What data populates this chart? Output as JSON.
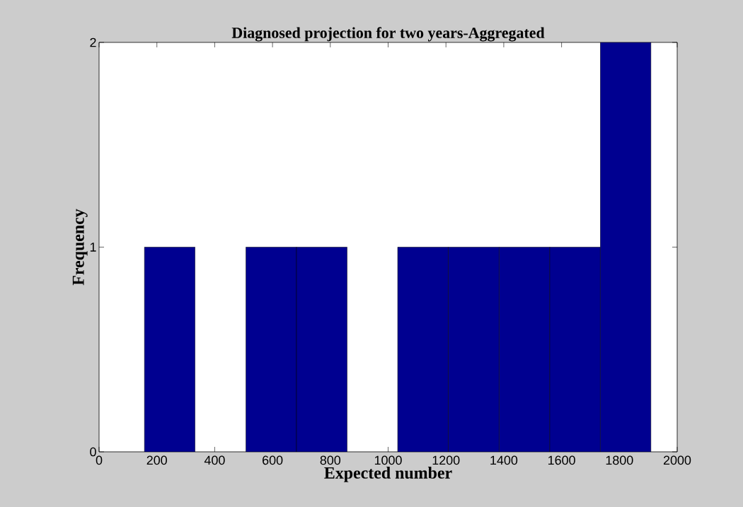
{
  "chart_data": {
    "type": "histogram",
    "title": "Diagnosed projection for two years-Aggregated",
    "xlabel": "Expected number",
    "ylabel": "Frequency",
    "bins": [
      157,
      332,
      508,
      683,
      858,
      1033,
      1208,
      1384,
      1559,
      1734,
      1909
    ],
    "values": [
      1,
      0,
      1,
      1,
      0,
      1,
      1,
      1,
      1,
      2
    ],
    "color": "#000090",
    "xlim": [
      0,
      2000
    ],
    "xticks": [
      0,
      200,
      400,
      600,
      800,
      1000,
      1200,
      1400,
      1600,
      1800,
      2000
    ],
    "ylim": [
      0,
      2
    ],
    "yticks": [
      0,
      1,
      2
    ]
  }
}
